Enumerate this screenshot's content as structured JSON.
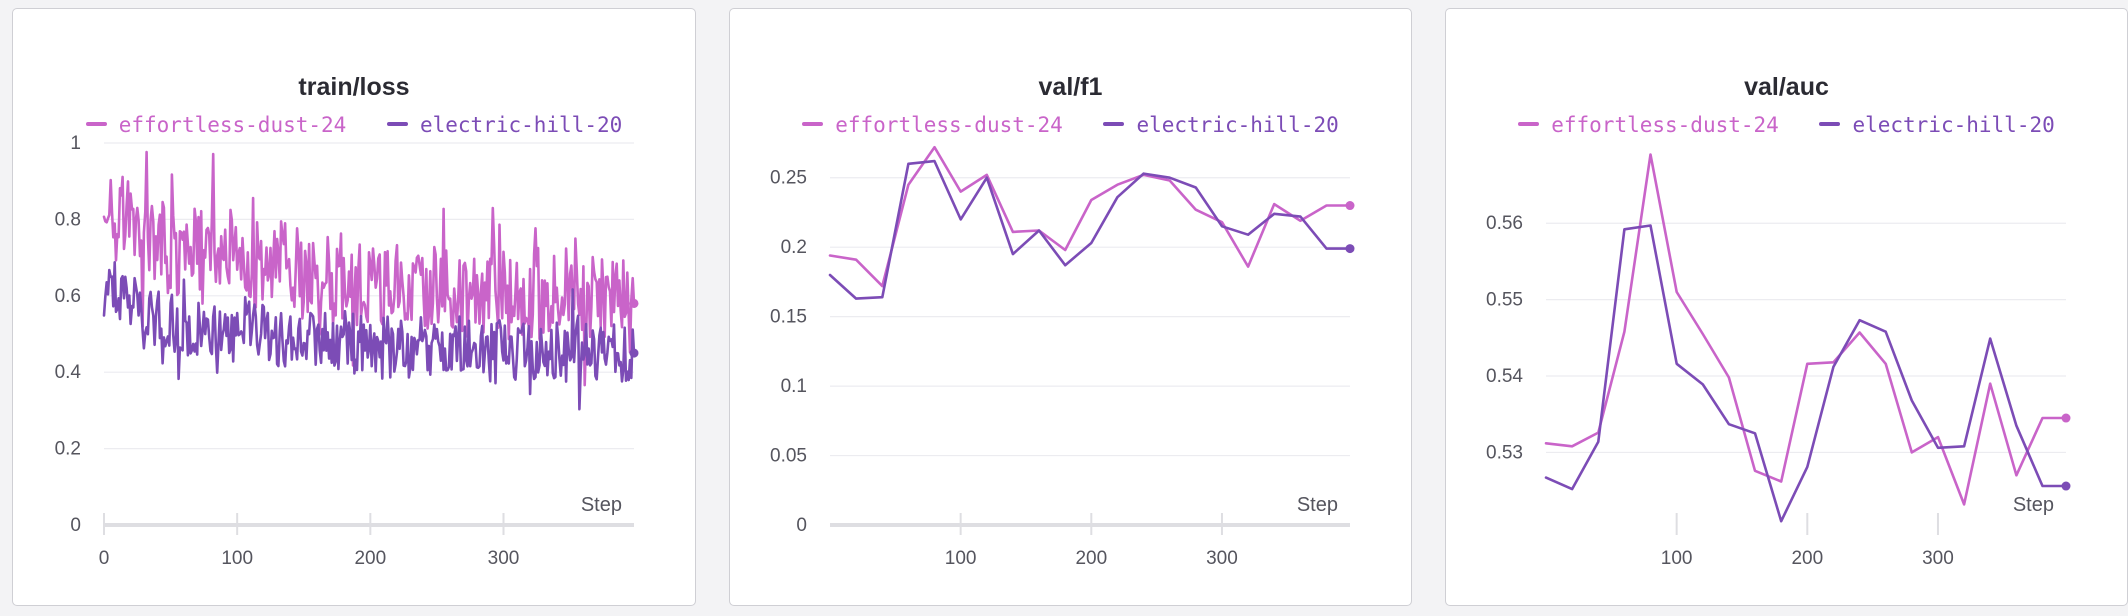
{
  "colors": {
    "effortless": "#c964c9",
    "electric": "#7c4cb6"
  },
  "chart_data": [
    {
      "type": "line",
      "title": "train/loss",
      "xlabel": "Step",
      "xlim": [
        0,
        398
      ],
      "ylim": [
        0,
        1
      ],
      "xticks": [
        0,
        100,
        200,
        300
      ],
      "yticks": [
        0,
        0.2,
        0.4,
        0.6,
        0.8,
        1
      ],
      "ytick_labels": [
        "0",
        "0.2",
        "0.4",
        "0.6",
        "0.8",
        "1"
      ],
      "legend": "top",
      "grid": true,
      "noisy": true,
      "series": [
        {
          "name": "effortless-dust-24",
          "color_key": "effortless",
          "x": [
            0,
            10,
            20,
            30,
            40,
            50,
            60,
            70,
            80,
            90,
            100,
            110,
            120,
            130,
            140,
            150,
            160,
            170,
            180,
            190,
            200,
            210,
            220,
            230,
            240,
            250,
            260,
            270,
            280,
            290,
            300,
            310,
            320,
            330,
            340,
            350,
            360,
            370,
            380,
            390,
            398
          ],
          "values": [
            0.88,
            0.82,
            0.8,
            0.76,
            0.74,
            0.72,
            0.71,
            0.7,
            0.7,
            0.7,
            0.69,
            0.68,
            0.67,
            0.68,
            0.66,
            0.65,
            0.65,
            0.64,
            0.64,
            0.63,
            0.62,
            0.62,
            0.62,
            0.61,
            0.61,
            0.6,
            0.61,
            0.6,
            0.6,
            0.6,
            0.6,
            0.59,
            0.6,
            0.59,
            0.59,
            0.59,
            0.59,
            0.59,
            0.59,
            0.59,
            0.58
          ]
        },
        {
          "name": "electric-hill-20",
          "color_key": "electric",
          "x": [
            0,
            10,
            20,
            30,
            40,
            50,
            60,
            70,
            80,
            90,
            100,
            110,
            120,
            130,
            140,
            150,
            160,
            170,
            180,
            190,
            200,
            210,
            220,
            230,
            240,
            250,
            260,
            270,
            280,
            290,
            300,
            310,
            320,
            330,
            340,
            350,
            360,
            370,
            380,
            390,
            398
          ],
          "values": [
            0.64,
            0.6,
            0.58,
            0.55,
            0.54,
            0.53,
            0.52,
            0.51,
            0.51,
            0.51,
            0.5,
            0.5,
            0.49,
            0.49,
            0.49,
            0.49,
            0.48,
            0.48,
            0.48,
            0.48,
            0.47,
            0.47,
            0.47,
            0.47,
            0.47,
            0.46,
            0.47,
            0.46,
            0.46,
            0.46,
            0.46,
            0.46,
            0.46,
            0.45,
            0.46,
            0.45,
            0.45,
            0.45,
            0.45,
            0.45,
            0.45
          ]
        }
      ]
    },
    {
      "type": "line",
      "title": "val/f1",
      "xlabel": "Step",
      "xlim": [
        0,
        398
      ],
      "ylim": [
        0,
        0.275
      ],
      "xticks": [
        100,
        200,
        300
      ],
      "yticks": [
        0,
        0.05,
        0.1,
        0.15,
        0.2,
        0.25
      ],
      "ytick_labels": [
        "0",
        "0.05",
        "0.1",
        "0.15",
        "0.2",
        "0.25"
      ],
      "legend": "top",
      "grid": true,
      "series": [
        {
          "name": "effortless-dust-24",
          "color_key": "effortless",
          "x": [
            0,
            20,
            40,
            60,
            80,
            100,
            120,
            140,
            160,
            180,
            200,
            220,
            240,
            260,
            280,
            300,
            320,
            340,
            360,
            380,
            398
          ],
          "values": [
            0.194,
            0.191,
            0.172,
            0.245,
            0.272,
            0.24,
            0.252,
            0.211,
            0.212,
            0.198,
            0.234,
            0.245,
            0.252,
            0.248,
            0.227,
            0.218,
            0.186,
            0.231,
            0.219,
            0.23,
            0.23
          ]
        },
        {
          "name": "electric-hill-20",
          "color_key": "electric",
          "x": [
            0,
            20,
            40,
            60,
            80,
            100,
            120,
            140,
            160,
            180,
            200,
            220,
            240,
            260,
            280,
            300,
            320,
            340,
            360,
            380,
            398
          ],
          "values": [
            0.18,
            0.163,
            0.164,
            0.26,
            0.262,
            0.22,
            0.25,
            0.195,
            0.212,
            0.187,
            0.203,
            0.236,
            0.253,
            0.25,
            0.243,
            0.215,
            0.209,
            0.224,
            0.222,
            0.199,
            0.199
          ]
        }
      ]
    },
    {
      "type": "line",
      "title": "val/auc",
      "xlabel": "Step",
      "xlim": [
        0,
        398
      ],
      "ylim": [
        0.5205,
        0.5705
      ],
      "xticks": [
        100,
        200,
        300
      ],
      "yticks": [
        0.53,
        0.54,
        0.55,
        0.56
      ],
      "ytick_labels": [
        "0.53",
        "0.54",
        "0.55",
        "0.56"
      ],
      "legend": "top",
      "grid": true,
      "series": [
        {
          "name": "effortless-dust-24",
          "color_key": "effortless",
          "x": [
            0,
            20,
            40,
            60,
            80,
            100,
            120,
            140,
            160,
            180,
            200,
            220,
            240,
            260,
            280,
            300,
            320,
            340,
            360,
            380,
            398
          ],
          "values": [
            0.5312,
            0.5308,
            0.5326,
            0.5458,
            0.569,
            0.551,
            0.5455,
            0.5398,
            0.5276,
            0.5262,
            0.5416,
            0.5418,
            0.5457,
            0.5416,
            0.53,
            0.532,
            0.5232,
            0.539,
            0.527,
            0.5345,
            0.5345
          ]
        },
        {
          "name": "electric-hill-20",
          "color_key": "electric",
          "x": [
            0,
            20,
            40,
            60,
            80,
            100,
            120,
            140,
            160,
            180,
            200,
            220,
            240,
            260,
            280,
            300,
            320,
            340,
            360,
            380,
            398
          ],
          "values": [
            0.5267,
            0.5252,
            0.5314,
            0.5592,
            0.5597,
            0.5416,
            0.5389,
            0.5337,
            0.5325,
            0.521,
            0.5281,
            0.5412,
            0.5473,
            0.5458,
            0.5368,
            0.5306,
            0.5308,
            0.5449,
            0.5335,
            0.5256,
            0.5256
          ]
        }
      ]
    }
  ]
}
